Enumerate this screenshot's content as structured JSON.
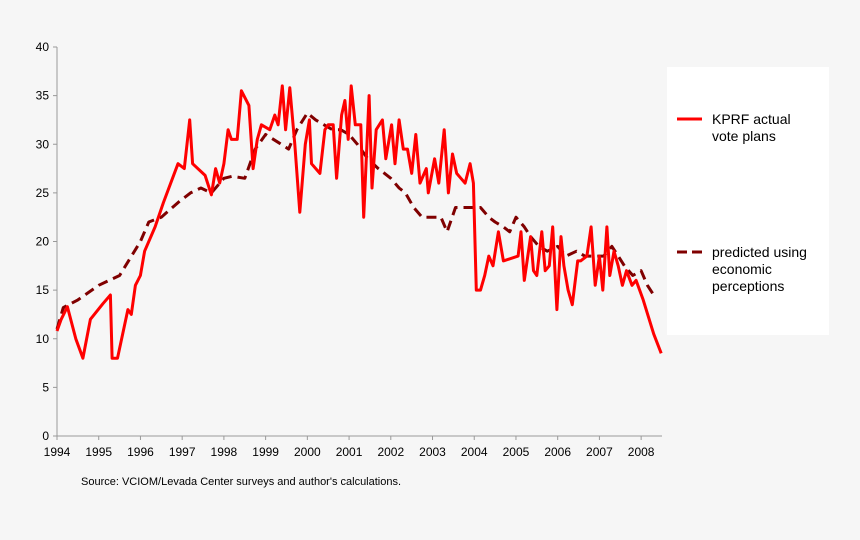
{
  "chart_data": {
    "type": "line",
    "xlim": [
      1994,
      2008.5
    ],
    "ylim": [
      0,
      40
    ],
    "x_ticks": [
      "1994",
      "1995",
      "1996",
      "1997",
      "1998",
      "1999",
      "2000",
      "2001",
      "2002",
      "2003",
      "2004",
      "2005",
      "2006",
      "2007",
      "2008"
    ],
    "y_ticks": [
      "0",
      "5",
      "10",
      "15",
      "20",
      "25",
      "30",
      "35",
      "40"
    ],
    "grid": false,
    "legend_position": "right",
    "source": "Source: VCIOM/Levada Center surveys and author's calculations.",
    "series": [
      {
        "name": "KPRF actual vote plans",
        "color": "#ff0000",
        "style": "solid",
        "points": [
          [
            1994.0,
            10.8
          ],
          [
            1994.1,
            12.0
          ],
          [
            1994.25,
            13.3
          ],
          [
            1994.45,
            10.0
          ],
          [
            1994.62,
            8.0
          ],
          [
            1994.8,
            12.0
          ],
          [
            1995.1,
            13.6
          ],
          [
            1995.28,
            14.5
          ],
          [
            1995.32,
            8.0
          ],
          [
            1995.45,
            8.0
          ],
          [
            1995.7,
            13.0
          ],
          [
            1995.78,
            12.5
          ],
          [
            1995.88,
            15.5
          ],
          [
            1996.0,
            16.5
          ],
          [
            1996.1,
            19.0
          ],
          [
            1996.35,
            21.5
          ],
          [
            1996.55,
            24.0
          ],
          [
            1996.9,
            28.0
          ],
          [
            1997.05,
            27.5
          ],
          [
            1997.18,
            32.5
          ],
          [
            1997.25,
            28.0
          ],
          [
            1997.55,
            26.8
          ],
          [
            1997.7,
            24.8
          ],
          [
            1997.8,
            27.5
          ],
          [
            1997.9,
            26.0
          ],
          [
            1998.0,
            28.0
          ],
          [
            1998.1,
            31.5
          ],
          [
            1998.18,
            30.5
          ],
          [
            1998.32,
            30.5
          ],
          [
            1998.42,
            35.5
          ],
          [
            1998.6,
            34.0
          ],
          [
            1998.7,
            27.5
          ],
          [
            1998.8,
            30.5
          ],
          [
            1998.9,
            32.0
          ],
          [
            1999.1,
            31.5
          ],
          [
            1999.22,
            33.0
          ],
          [
            1999.3,
            32.0
          ],
          [
            1999.4,
            36.0
          ],
          [
            1999.48,
            31.5
          ],
          [
            1999.58,
            35.8
          ],
          [
            1999.7,
            30.0
          ],
          [
            1999.82,
            23.0
          ],
          [
            1999.95,
            30.0
          ],
          [
            2000.05,
            32.5
          ],
          [
            2000.1,
            28.0
          ],
          [
            2000.3,
            27.0
          ],
          [
            2000.42,
            31.5
          ],
          [
            2000.5,
            32.0
          ],
          [
            2000.62,
            32.0
          ],
          [
            2000.7,
            26.5
          ],
          [
            2000.82,
            33.0
          ],
          [
            2000.9,
            34.5
          ],
          [
            2000.98,
            30.5
          ],
          [
            2001.05,
            36.0
          ],
          [
            2001.15,
            32.0
          ],
          [
            2001.28,
            32.0
          ],
          [
            2001.35,
            22.5
          ],
          [
            2001.48,
            35.0
          ],
          [
            2001.55,
            25.5
          ],
          [
            2001.65,
            31.5
          ],
          [
            2001.8,
            32.5
          ],
          [
            2001.88,
            28.5
          ],
          [
            2002.02,
            32.0
          ],
          [
            2002.1,
            28.0
          ],
          [
            2002.2,
            32.5
          ],
          [
            2002.3,
            29.5
          ],
          [
            2002.4,
            29.5
          ],
          [
            2002.5,
            27.0
          ],
          [
            2002.6,
            31.0
          ],
          [
            2002.7,
            26.0
          ],
          [
            2002.85,
            27.5
          ],
          [
            2002.9,
            25.0
          ],
          [
            2003.05,
            28.5
          ],
          [
            2003.15,
            26.0
          ],
          [
            2003.28,
            31.5
          ],
          [
            2003.38,
            25.0
          ],
          [
            2003.48,
            29.0
          ],
          [
            2003.58,
            27.0
          ],
          [
            2003.68,
            26.5
          ],
          [
            2003.78,
            26.0
          ],
          [
            2003.9,
            28.0
          ],
          [
            2003.98,
            26.0
          ],
          [
            2004.05,
            15.0
          ],
          [
            2004.15,
            15.0
          ],
          [
            2004.25,
            16.5
          ],
          [
            2004.35,
            18.5
          ],
          [
            2004.45,
            17.5
          ],
          [
            2004.58,
            21.0
          ],
          [
            2004.7,
            18.0
          ],
          [
            2005.05,
            18.5
          ],
          [
            2005.12,
            21.0
          ],
          [
            2005.2,
            16.0
          ],
          [
            2005.35,
            20.5
          ],
          [
            2005.42,
            17.0
          ],
          [
            2005.5,
            16.5
          ],
          [
            2005.62,
            21.0
          ],
          [
            2005.7,
            17.0
          ],
          [
            2005.8,
            17.5
          ],
          [
            2005.88,
            21.5
          ],
          [
            2005.98,
            13.0
          ],
          [
            2006.08,
            20.5
          ],
          [
            2006.15,
            17.5
          ],
          [
            2006.25,
            15.0
          ],
          [
            2006.35,
            13.5
          ],
          [
            2006.48,
            18.0
          ],
          [
            2006.55,
            18.0
          ],
          [
            2006.7,
            18.5
          ],
          [
            2006.8,
            21.5
          ],
          [
            2006.9,
            15.5
          ],
          [
            2007.0,
            18.5
          ],
          [
            2007.08,
            15.0
          ],
          [
            2007.18,
            21.5
          ],
          [
            2007.25,
            16.5
          ],
          [
            2007.35,
            19.0
          ],
          [
            2007.45,
            17.5
          ],
          [
            2007.55,
            15.5
          ],
          [
            2007.65,
            17.0
          ],
          [
            2007.78,
            15.5
          ],
          [
            2007.88,
            16.0
          ],
          [
            2008.05,
            14.0
          ],
          [
            2008.3,
            10.5
          ],
          [
            2008.48,
            8.5
          ]
        ]
      },
      {
        "name": "predicted using economic perceptions",
        "color": "#800000",
        "style": "dashed",
        "points": [
          [
            1994.0,
            11.0
          ],
          [
            1994.15,
            13.2
          ],
          [
            1994.5,
            14.0
          ],
          [
            1995.0,
            15.5
          ],
          [
            1995.5,
            16.5
          ],
          [
            1996.0,
            20.0
          ],
          [
            1996.2,
            22.0
          ],
          [
            1996.5,
            22.5
          ],
          [
            1996.9,
            24.0
          ],
          [
            1997.2,
            25.0
          ],
          [
            1997.45,
            25.5
          ],
          [
            1997.7,
            25.0
          ],
          [
            1998.0,
            26.5
          ],
          [
            1998.2,
            26.7
          ],
          [
            1998.5,
            26.5
          ],
          [
            1998.75,
            29.5
          ],
          [
            1999.0,
            31.0
          ],
          [
            1999.3,
            30.2
          ],
          [
            1999.55,
            29.5
          ],
          [
            1999.75,
            31.5
          ],
          [
            2000.0,
            33.2
          ],
          [
            2000.2,
            32.5
          ],
          [
            2000.4,
            32.0
          ],
          [
            2000.6,
            31.5
          ],
          [
            2000.8,
            31.5
          ],
          [
            2001.0,
            31.0
          ],
          [
            2001.2,
            30.0
          ],
          [
            2001.45,
            28.5
          ],
          [
            2001.7,
            27.5
          ],
          [
            2002.0,
            26.5
          ],
          [
            2002.2,
            25.5
          ],
          [
            2002.35,
            25.0
          ],
          [
            2002.55,
            23.5
          ],
          [
            2002.75,
            22.5
          ],
          [
            2002.95,
            22.5
          ],
          [
            2003.2,
            22.5
          ],
          [
            2003.35,
            21.0
          ],
          [
            2003.55,
            23.5
          ],
          [
            2003.75,
            23.5
          ],
          [
            2004.0,
            23.5
          ],
          [
            2004.15,
            23.5
          ],
          [
            2004.35,
            22.5
          ],
          [
            2004.5,
            22.0
          ],
          [
            2004.7,
            21.5
          ],
          [
            2004.85,
            21.0
          ],
          [
            2005.0,
            22.5
          ],
          [
            2005.2,
            21.5
          ],
          [
            2005.35,
            20.5
          ],
          [
            2005.55,
            19.5
          ],
          [
            2005.75,
            19.0
          ],
          [
            2006.0,
            19.5
          ],
          [
            2006.2,
            18.5
          ],
          [
            2006.45,
            19.0
          ],
          [
            2006.65,
            18.5
          ],
          [
            2006.85,
            18.5
          ],
          [
            2007.1,
            18.5
          ],
          [
            2007.3,
            19.5
          ],
          [
            2007.45,
            18.5
          ],
          [
            2007.6,
            17.5
          ],
          [
            2007.8,
            16.5
          ],
          [
            2008.0,
            17.0
          ],
          [
            2008.15,
            15.5
          ],
          [
            2008.3,
            14.5
          ]
        ]
      }
    ],
    "legend": [
      {
        "lines": [
          "KPRF actual",
          "vote plans"
        ]
      },
      {
        "lines": [
          "predicted using",
          "economic",
          "perceptions"
        ]
      }
    ]
  }
}
